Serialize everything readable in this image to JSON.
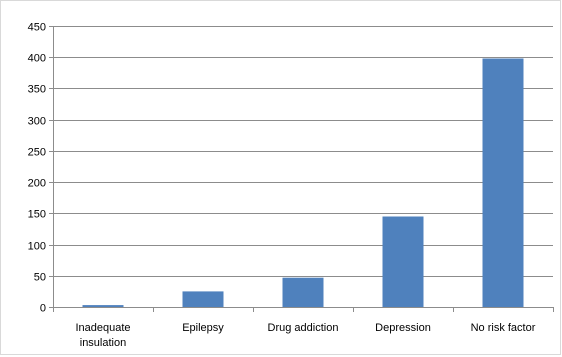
{
  "chart_data": {
    "type": "bar",
    "categories": [
      "Inadequate insulation",
      "Epilepsy",
      "Drug addiction",
      "Depression",
      "No risk factor"
    ],
    "category_lines": [
      [
        "Inadequate",
        "insulation"
      ],
      [
        "Epilepsy"
      ],
      [
        "Drug addiction"
      ],
      [
        "Depression"
      ],
      [
        "No risk factor"
      ]
    ],
    "values": [
      3,
      25,
      47,
      145,
      398
    ],
    "title": "",
    "xlabel": "",
    "ylabel": "",
    "ylim": [
      0,
      450
    ],
    "yticks": [
      0,
      50,
      100,
      150,
      200,
      250,
      300,
      350,
      400,
      450
    ],
    "grid": true,
    "legend": "none",
    "colors": {
      "bar": "#4f81bd",
      "grid": "#8c8c8c",
      "axis": "#8c8c8c",
      "frame": "#d9d9d9",
      "text": "#000000"
    }
  }
}
